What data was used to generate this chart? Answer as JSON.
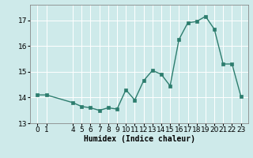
{
  "x": [
    0,
    1,
    4,
    5,
    6,
    7,
    8,
    9,
    10,
    11,
    12,
    13,
    14,
    15,
    16,
    17,
    18,
    19,
    20,
    21,
    22,
    23
  ],
  "y": [
    14.1,
    14.1,
    13.8,
    13.65,
    13.6,
    13.5,
    13.6,
    13.55,
    14.3,
    13.9,
    14.65,
    15.05,
    14.9,
    14.45,
    16.25,
    16.9,
    16.95,
    17.15,
    16.65,
    15.3,
    15.3,
    14.05
  ],
  "line_color": "#2d7d6e",
  "marker_color": "#2d7d6e",
  "bg_color": "#ceeaea",
  "grid_color": "#ffffff",
  "xlabel": "Humidex (Indice chaleur)",
  "ylim": [
    13.0,
    17.6
  ],
  "yticks": [
    13,
    14,
    15,
    16,
    17
  ],
  "xlim": [
    -0.8,
    23.8
  ],
  "xlabel_fontsize": 7,
  "tick_fontsize": 6.5,
  "linewidth": 1.0,
  "markersize": 2.2
}
